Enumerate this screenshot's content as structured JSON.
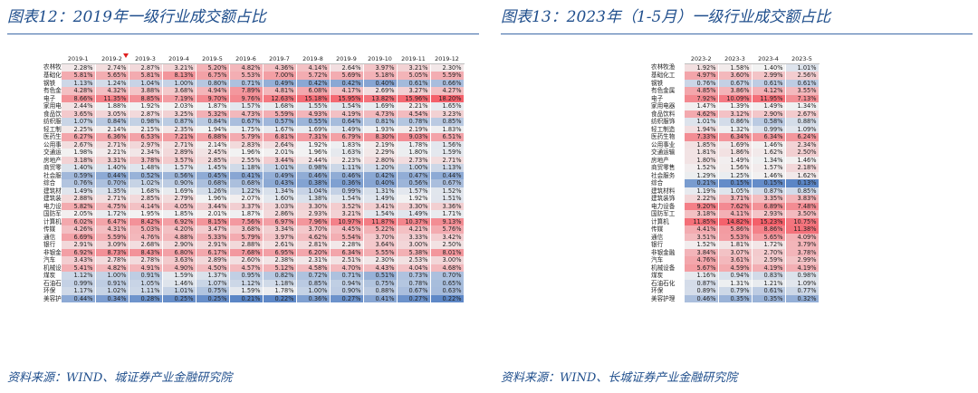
{
  "left": {
    "title": "图表12：2019年一级行业成交额占比",
    "source": "资料来源：WIND、城证券产业金融研究院",
    "columns": [
      "2019-1",
      "2019-2",
      "2019-3",
      "2019-4",
      "2019-5",
      "2019-6",
      "2019-7",
      "2019-8",
      "2019-9",
      "2019-10",
      "2019-11",
      "2019-12"
    ],
    "rows": [
      {
        "name": "农林牧渔",
        "values": [
          "2.28%",
          "2.74%",
          "2.87%",
          "3.21%",
          "5.20%",
          "4.82%",
          "4.36%",
          "4.14%",
          "2.64%",
          "3.97%",
          "3.21%",
          "2.30%"
        ]
      },
      {
        "name": "基础化工",
        "values": [
          "5.81%",
          "5.65%",
          "5.81%",
          "8.13%",
          "6.75%",
          "5.53%",
          "7.00%",
          "5.72%",
          "5.69%",
          "5.18%",
          "5.05%",
          "5.59%"
        ]
      },
      {
        "name": "钢铁",
        "values": [
          "1.13%",
          "1.24%",
          "1.04%",
          "1.00%",
          "0.80%",
          "0.71%",
          "0.49%",
          "0.42%",
          "0.42%",
          "0.40%",
          "0.61%",
          "0.66%"
        ]
      },
      {
        "name": "有色金属",
        "values": [
          "4.28%",
          "4.32%",
          "3.88%",
          "3.68%",
          "4.94%",
          "7.89%",
          "4.81%",
          "6.08%",
          "4.17%",
          "2.69%",
          "3.27%",
          "4.27%"
        ]
      },
      {
        "name": "电子",
        "values": [
          "8.66%",
          "11.35%",
          "8.85%",
          "7.19%",
          "9.70%",
          "9.76%",
          "12.63%",
          "15.18%",
          "15.95%",
          "13.82%",
          "15.96%",
          "18.20%"
        ]
      },
      {
        "name": "家用电器",
        "values": [
          "2.44%",
          "1.88%",
          "1.92%",
          "2.03%",
          "1.87%",
          "1.57%",
          "1.68%",
          "1.55%",
          "1.54%",
          "1.69%",
          "2.21%",
          "1.65%"
        ]
      },
      {
        "name": "食品饮料",
        "values": [
          "3.65%",
          "3.05%",
          "2.87%",
          "3.25%",
          "5.32%",
          "4.73%",
          "5.59%",
          "4.93%",
          "4.19%",
          "4.73%",
          "4.54%",
          "3.23%"
        ]
      },
      {
        "name": "纺织服饰",
        "values": [
          "1.07%",
          "0.84%",
          "0.98%",
          "0.87%",
          "0.84%",
          "0.67%",
          "0.57%",
          "0.55%",
          "0.64%",
          "0.81%",
          "0.78%",
          "0.85%"
        ]
      },
      {
        "name": "轻工制造",
        "values": [
          "2.25%",
          "2.14%",
          "2.15%",
          "2.35%",
          "1.94%",
          "1.75%",
          "1.67%",
          "1.69%",
          "1.49%",
          "1.93%",
          "2.19%",
          "1.83%"
        ]
      },
      {
        "name": "医药生物",
        "values": [
          "6.27%",
          "6.36%",
          "6.53%",
          "7.21%",
          "6.88%",
          "5.79%",
          "6.81%",
          "7.31%",
          "6.79%",
          "8.30%",
          "9.03%",
          "6.51%"
        ]
      },
      {
        "name": "公用事业",
        "values": [
          "2.67%",
          "2.71%",
          "2.97%",
          "2.71%",
          "2.14%",
          "2.83%",
          "2.64%",
          "1.92%",
          "1.83%",
          "2.19%",
          "1.78%",
          "1.56%"
        ]
      },
      {
        "name": "交通运输",
        "values": [
          "1.98%",
          "2.21%",
          "2.34%",
          "2.89%",
          "2.45%",
          "1.96%",
          "2.01%",
          "1.96%",
          "1.63%",
          "2.29%",
          "1.80%",
          "1.59%"
        ]
      },
      {
        "name": "房地产",
        "values": [
          "3.18%",
          "3.31%",
          "3.78%",
          "3.57%",
          "2.85%",
          "2.55%",
          "3.44%",
          "2.44%",
          "2.23%",
          "2.80%",
          "2.73%",
          "2.71%"
        ]
      },
      {
        "name": "商贸零售",
        "values": [
          "1.40%",
          "1.40%",
          "1.48%",
          "1.57%",
          "1.45%",
          "1.18%",
          "1.01%",
          "0.98%",
          "1.11%",
          "1.20%",
          "1.00%",
          "1.13%"
        ]
      },
      {
        "name": "社会服务",
        "values": [
          "0.59%",
          "0.44%",
          "0.52%",
          "0.56%",
          "0.45%",
          "0.41%",
          "0.49%",
          "0.46%",
          "0.46%",
          "0.42%",
          "0.47%",
          "0.44%"
        ]
      },
      {
        "name": "综合",
        "values": [
          "0.76%",
          "0.70%",
          "1.02%",
          "0.90%",
          "0.68%",
          "0.68%",
          "0.43%",
          "0.38%",
          "0.36%",
          "0.40%",
          "0.56%",
          "0.67%"
        ]
      },
      {
        "name": "建筑材料",
        "values": [
          "1.49%",
          "1.35%",
          "1.68%",
          "1.69%",
          "1.26%",
          "1.22%",
          "1.34%",
          "1.04%",
          "0.99%",
          "1.31%",
          "1.57%",
          "1.52%"
        ]
      },
      {
        "name": "建筑装饰",
        "values": [
          "2.88%",
          "2.71%",
          "2.85%",
          "2.79%",
          "1.96%",
          "2.07%",
          "1.60%",
          "1.38%",
          "1.54%",
          "1.49%",
          "1.92%",
          "1.51%"
        ]
      },
      {
        "name": "电力设备",
        "values": [
          "5.82%",
          "4.75%",
          "4.14%",
          "4.05%",
          "3.44%",
          "3.37%",
          "3.03%",
          "3.30%",
          "3.52%",
          "3.41%",
          "3.30%",
          "3.36%"
        ]
      },
      {
        "name": "国防军工",
        "values": [
          "2.05%",
          "1.72%",
          "1.95%",
          "1.85%",
          "2.01%",
          "1.87%",
          "2.86%",
          "2.93%",
          "3.21%",
          "1.54%",
          "1.49%",
          "1.71%"
        ]
      },
      {
        "name": "计算机",
        "values": [
          "6.02%",
          "6.47%",
          "8.42%",
          "6.92%",
          "8.15%",
          "7.56%",
          "6.97%",
          "7.96%",
          "10.97%",
          "11.87%",
          "10.37%",
          "9.13%"
        ]
      },
      {
        "name": "传媒",
        "values": [
          "4.26%",
          "4.31%",
          "5.03%",
          "4.20%",
          "3.47%",
          "3.68%",
          "3.34%",
          "3.70%",
          "4.45%",
          "5.22%",
          "4.21%",
          "5.76%"
        ]
      },
      {
        "name": "通信",
        "values": [
          "6.69%",
          "5.59%",
          "4.76%",
          "4.88%",
          "5.33%",
          "5.79%",
          "3.97%",
          "4.62%",
          "5.54%",
          "3.70%",
          "3.33%",
          "3.42%"
        ]
      },
      {
        "name": "银行",
        "values": [
          "2.91%",
          "3.09%",
          "2.68%",
          "2.90%",
          "2.91%",
          "2.88%",
          "2.61%",
          "2.81%",
          "2.28%",
          "3.64%",
          "3.00%",
          "2.50%"
        ]
      },
      {
        "name": "非银金融",
        "values": [
          "6.92%",
          "8.73%",
          "8.43%",
          "6.80%",
          "6.17%",
          "7.68%",
          "6.95%",
          "6.20%",
          "6.34%",
          "5.55%",
          "5.38%",
          "8.01%"
        ]
      },
      {
        "name": "汽车",
        "values": [
          "3.43%",
          "2.78%",
          "2.78%",
          "3.63%",
          "2.89%",
          "2.60%",
          "2.38%",
          "2.31%",
          "2.51%",
          "2.30%",
          "2.53%",
          "3.00%"
        ]
      },
      {
        "name": "机械设备",
        "values": [
          "5.41%",
          "4.82%",
          "4.91%",
          "4.90%",
          "4.50%",
          "4.57%",
          "5.12%",
          "4.58%",
          "4.70%",
          "4.43%",
          "4.04%",
          "4.68%"
        ]
      },
      {
        "name": "煤炭",
        "values": [
          "1.12%",
          "1.00%",
          "0.91%",
          "1.59%",
          "1.37%",
          "0.95%",
          "0.82%",
          "0.72%",
          "0.71%",
          "0.51%",
          "0.73%",
          "0.70%"
        ]
      },
      {
        "name": "石油石化",
        "values": [
          "0.99%",
          "0.91%",
          "1.05%",
          "1.46%",
          "1.07%",
          "1.12%",
          "1.18%",
          "0.85%",
          "0.94%",
          "0.75%",
          "0.78%",
          "0.65%"
        ]
      },
      {
        "name": "环保",
        "values": [
          "1.17%",
          "1.02%",
          "1.11%",
          "1.01%",
          "0.75%",
          "1.59%",
          "1.78%",
          "1.00%",
          "0.90%",
          "0.88%",
          "0.67%",
          "0.63%"
        ]
      },
      {
        "name": "美容护理",
        "values": [
          "0.44%",
          "0.34%",
          "0.28%",
          "0.25%",
          "0.25%",
          "0.21%",
          "0.22%",
          "0.36%",
          "0.27%",
          "0.41%",
          "0.27%",
          "0.22%"
        ]
      }
    ]
  },
  "right": {
    "title": "图表13：2023年（1-5月）一级行业成交额占比",
    "source": "资料来源：WIND、长城证券产业金融研究院",
    "columns": [
      "2023-2",
      "2023-3",
      "2023-4",
      "2023-5"
    ],
    "rows": [
      {
        "name": "农林牧渔",
        "values": [
          "1.92%",
          "1.58%",
          "1.40%",
          "1.01%"
        ]
      },
      {
        "name": "基础化工",
        "values": [
          "4.97%",
          "3.60%",
          "2.99%",
          "2.56%"
        ]
      },
      {
        "name": "钢铁",
        "values": [
          "0.76%",
          "0.67%",
          "0.61%",
          "0.61%"
        ]
      },
      {
        "name": "有色金属",
        "values": [
          "4.85%",
          "3.86%",
          "4.12%",
          "3.55%"
        ]
      },
      {
        "name": "电子",
        "values": [
          "7.92%",
          "10.09%",
          "11.95%",
          "7.13%"
        ]
      },
      {
        "name": "家用电器",
        "values": [
          "1.47%",
          "1.39%",
          "1.49%",
          "1.34%"
        ]
      },
      {
        "name": "食品饮料",
        "values": [
          "4.62%",
          "3.12%",
          "2.90%",
          "2.67%"
        ]
      },
      {
        "name": "纺织服饰",
        "values": [
          "1.01%",
          "0.86%",
          "0.58%",
          "0.88%"
        ]
      },
      {
        "name": "轻工制造",
        "values": [
          "1.94%",
          "1.32%",
          "0.99%",
          "1.09%"
        ]
      },
      {
        "name": "医药生物",
        "values": [
          "7.33%",
          "6.34%",
          "6.34%",
          "6.24%"
        ]
      },
      {
        "name": "公用事业",
        "values": [
          "1.85%",
          "1.69%",
          "1.46%",
          "2.34%"
        ]
      },
      {
        "name": "交通运输",
        "values": [
          "1.81%",
          "1.86%",
          "1.62%",
          "2.50%"
        ]
      },
      {
        "name": "房地产",
        "values": [
          "1.80%",
          "1.49%",
          "1.34%",
          "1.46%"
        ]
      },
      {
        "name": "商贸零售",
        "values": [
          "1.52%",
          "1.56%",
          "1.57%",
          "2.18%"
        ]
      },
      {
        "name": "社会服务",
        "values": [
          "1.29%",
          "1.25%",
          "1.46%",
          "1.62%"
        ]
      },
      {
        "name": "综合",
        "values": [
          "0.21%",
          "0.15%",
          "0.15%",
          "0.13%"
        ]
      },
      {
        "name": "建筑材料",
        "values": [
          "1.19%",
          "1.05%",
          "0.87%",
          "0.85%"
        ]
      },
      {
        "name": "建筑装饰",
        "values": [
          "2.22%",
          "3.71%",
          "3.35%",
          "3.83%"
        ]
      },
      {
        "name": "电力设备",
        "values": [
          "9.20%",
          "7.62%",
          "6.89%",
          "7.48%"
        ]
      },
      {
        "name": "国防军工",
        "values": [
          "3.18%",
          "4.11%",
          "2.93%",
          "3.50%"
        ]
      },
      {
        "name": "计算机",
        "values": [
          "11.85%",
          "14.82%",
          "15.23%",
          "10.75%"
        ]
      },
      {
        "name": "传媒",
        "values": [
          "4.41%",
          "5.86%",
          "8.86%",
          "11.38%"
        ]
      },
      {
        "name": "通信",
        "values": [
          "3.51%",
          "5.53%",
          "5.65%",
          "4.09%"
        ]
      },
      {
        "name": "银行",
        "values": [
          "1.52%",
          "1.81%",
          "1.72%",
          "3.79%"
        ]
      },
      {
        "name": "非银金融",
        "values": [
          "3.84%",
          "3.07%",
          "2.70%",
          "3.78%"
        ]
      },
      {
        "name": "汽车",
        "values": [
          "4.76%",
          "3.61%",
          "2.59%",
          "2.99%"
        ]
      },
      {
        "name": "机械设备",
        "values": [
          "5.67%",
          "4.59%",
          "4.19%",
          "4.19%"
        ]
      },
      {
        "name": "煤炭",
        "values": [
          "1.16%",
          "0.94%",
          "0.83%",
          "0.98%"
        ]
      },
      {
        "name": "石油石化",
        "values": [
          "0.87%",
          "1.31%",
          "1.21%",
          "1.09%"
        ]
      },
      {
        "name": "环保",
        "values": [
          "0.89%",
          "0.79%",
          "0.61%",
          "0.77%"
        ]
      },
      {
        "name": "美容护理",
        "values": [
          "0.46%",
          "0.35%",
          "0.35%",
          "0.32%"
        ]
      }
    ]
  },
  "colors": {
    "title_text": "#1f4e8c",
    "rule": "#3d6aa8",
    "low": "#5b86c6",
    "mid": "#f2f2f2",
    "high": "#f4606a"
  }
}
